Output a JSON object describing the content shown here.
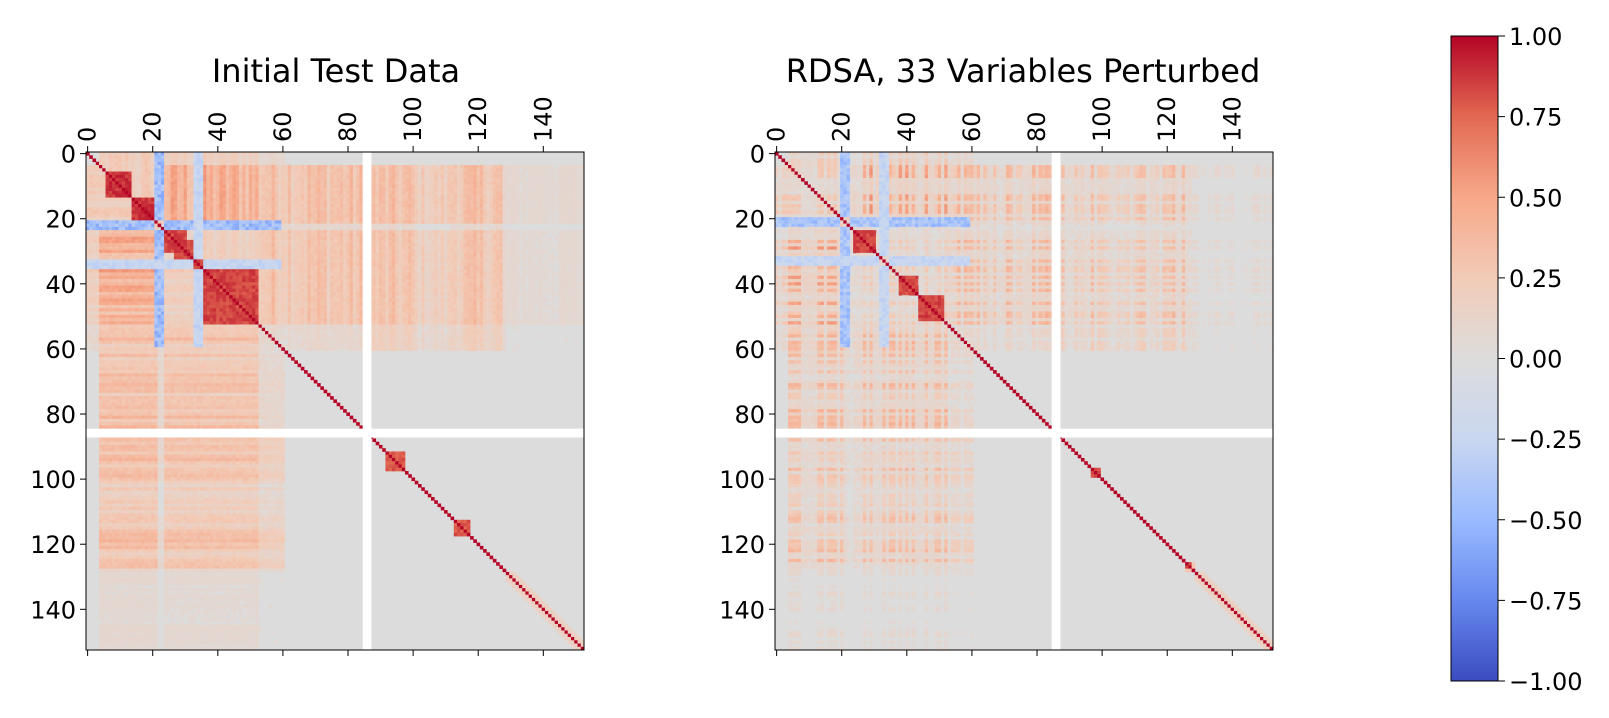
{
  "chart_data": [
    {
      "type": "heatmap",
      "title": "Initial Test Data",
      "n": 153,
      "gap_index": 85,
      "x_ticks": [
        "0",
        "20",
        "40",
        "60",
        "80",
        "100",
        "120",
        "140"
      ],
      "y_ticks": [
        "0",
        "20",
        "40",
        "60",
        "80",
        "100",
        "120",
        "140"
      ],
      "tick_values": [
        0,
        20,
        40,
        60,
        80,
        100,
        120,
        140
      ],
      "strong_blocks": [
        [
          6,
          13,
          0.95
        ],
        [
          14,
          21,
          0.95
        ],
        [
          24,
          30,
          0.9
        ],
        [
          27,
          35,
          0.9
        ],
        [
          36,
          52,
          0.9
        ],
        [
          92,
          97,
          0.85
        ],
        [
          113,
          117,
          0.85
        ]
      ],
      "bands": [
        [
          4,
          21,
          0.4
        ],
        [
          24,
          52,
          0.35
        ],
        [
          53,
          85,
          0.18
        ],
        [
          86,
          100,
          0.15
        ],
        [
          112,
          128,
          0.15
        ]
      ],
      "negative_cols": [
        [
          21,
          23,
          -0.55
        ],
        [
          33,
          35,
          -0.3
        ]
      ]
    },
    {
      "type": "heatmap",
      "title": "RDSA, 33 Variables Perturbed",
      "n": 153,
      "gap_index": 85,
      "x_ticks": [
        "0",
        "20",
        "40",
        "60",
        "80",
        "100",
        "120",
        "140"
      ],
      "y_ticks": [
        "0",
        "20",
        "40",
        "60",
        "80",
        "100",
        "120",
        "140"
      ],
      "tick_values": [
        0,
        20,
        40,
        60,
        80,
        100,
        120,
        140
      ],
      "strong_blocks": [
        [
          24,
          30,
          0.9
        ],
        [
          38,
          43,
          0.9
        ],
        [
          44,
          51,
          0.9
        ],
        [
          97,
          99,
          0.85
        ],
        [
          126,
          128,
          0.85
        ]
      ],
      "bands": [
        [
          4,
          21,
          0.3
        ],
        [
          24,
          52,
          0.3
        ],
        [
          53,
          85,
          0.15
        ],
        [
          86,
          100,
          0.12
        ],
        [
          112,
          128,
          0.12
        ]
      ],
      "negative_cols": [
        [
          20,
          22,
          -0.5
        ],
        [
          32,
          34,
          -0.3
        ]
      ]
    }
  ],
  "colorbar": {
    "min": -1.0,
    "max": 1.0,
    "ticks": [
      "1.00",
      "0.75",
      "0.50",
      "0.25",
      "0.00",
      "−0.25",
      "−0.50",
      "−0.75",
      "−1.00"
    ],
    "tick_values": [
      1.0,
      0.75,
      0.5,
      0.25,
      0.0,
      -0.25,
      -0.5,
      -0.75,
      -1.0
    ],
    "colormap": "coolwarm",
    "stops": [
      "#3b4cc0",
      "#6788ee",
      "#9abbff",
      "#c9d7f0",
      "#dddcdc",
      "#f2cbb7",
      "#f7a889",
      "#e26952",
      "#b40426"
    ]
  }
}
